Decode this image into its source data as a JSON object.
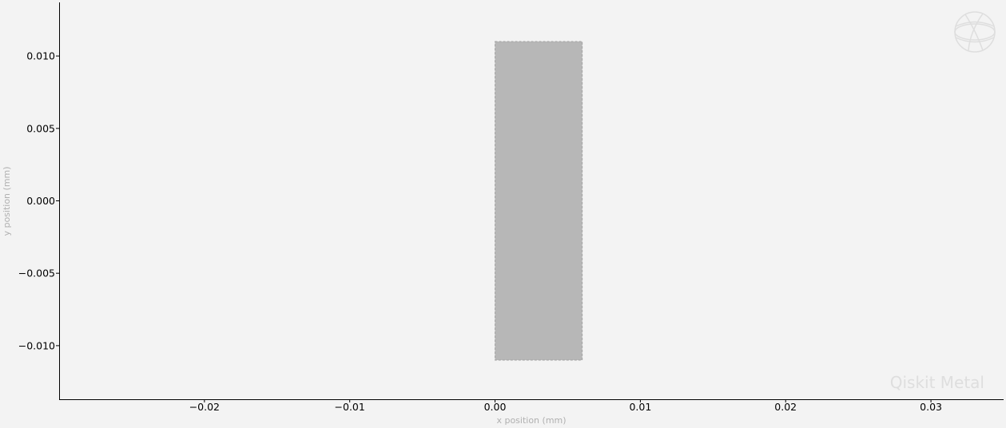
{
  "chart_data": {
    "type": "geometry-plot",
    "xlabel": "x position (mm)",
    "ylabel": "y position (mm)",
    "xlim": [
      -0.03,
      0.035
    ],
    "ylim": [
      -0.0137,
      0.0137
    ],
    "x_ticks": [
      {
        "value": -0.02,
        "label": "−0.02"
      },
      {
        "value": -0.01,
        "label": "−0.01"
      },
      {
        "value": 0.0,
        "label": "0.00"
      },
      {
        "value": 0.01,
        "label": "0.01"
      },
      {
        "value": 0.02,
        "label": "0.02"
      },
      {
        "value": 0.03,
        "label": "0.03"
      }
    ],
    "y_ticks": [
      {
        "value": 0.01,
        "label": "0.010"
      },
      {
        "value": 0.005,
        "label": "0.005"
      },
      {
        "value": 0.0,
        "label": "0.000"
      },
      {
        "value": -0.005,
        "label": "−0.005"
      },
      {
        "value": -0.01,
        "label": "−0.010"
      }
    ],
    "shapes": [
      {
        "type": "rectangle",
        "x0": 0.0,
        "x1": 0.006,
        "y0": -0.011,
        "y1": 0.011,
        "fill": "#b7b7b7",
        "edge": "#a3a3a3",
        "edge_style": "dashed"
      }
    ],
    "grid": false
  },
  "watermark": {
    "text": "Qiskit Metal",
    "logo_icon": "qiskit-globe-icon"
  },
  "colors": {
    "background": "#f3f3f3",
    "axis": "#000000",
    "axis_label": "#b0b0b0",
    "watermark": "#dedede"
  }
}
